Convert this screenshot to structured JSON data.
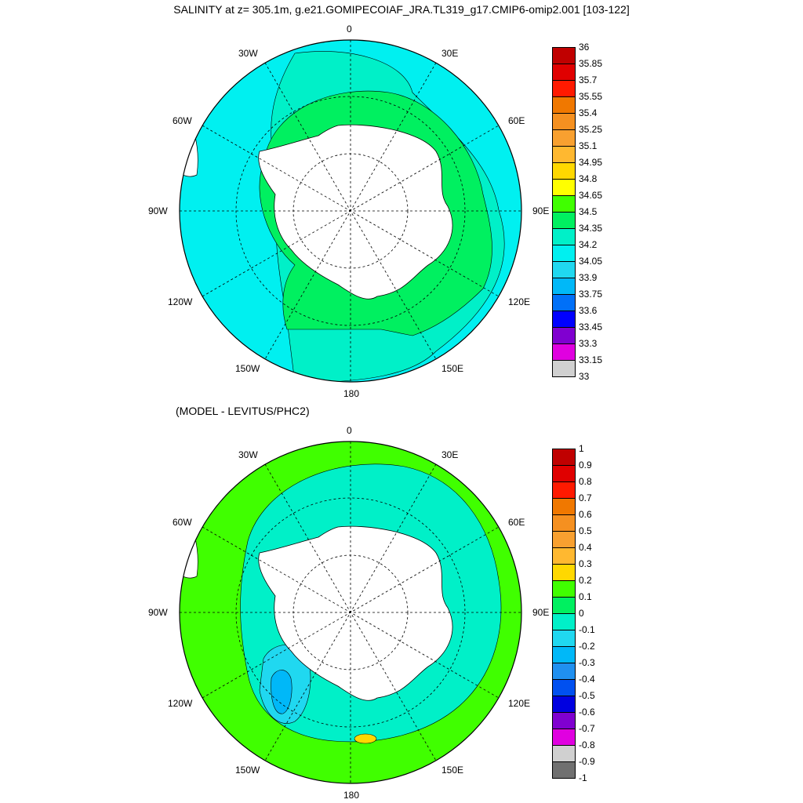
{
  "title": "SALINITY at z= 305.1m, g.e21.GOMIPECOIAF_JRA.TL319_g17.CMIP6-omip2.001 [103-122]",
  "subtitle": "(MODEL - LEVITUS/PHC2)",
  "lon_labels": [
    "0",
    "30E",
    "60E",
    "90E",
    "120E",
    "150E",
    "180",
    "150W",
    "120W",
    "90W",
    "60W",
    "30W"
  ],
  "top_colorbar": {
    "labels": [
      "36",
      "35.85",
      "35.7",
      "35.55",
      "35.4",
      "35.25",
      "35.1",
      "34.95",
      "34.8",
      "34.65",
      "34.5",
      "34.35",
      "34.2",
      "34.05",
      "33.9",
      "33.75",
      "33.6",
      "33.45",
      "33.3",
      "33.15",
      "33"
    ],
    "colors": [
      "#c00000",
      "#e00000",
      "#ff1a00",
      "#f07800",
      "#f59020",
      "#f8a030",
      "#ffb830",
      "#ffd800",
      "#ffff00",
      "#40ff00",
      "#00f060",
      "#00f0c8",
      "#00f0f0",
      "#20d8f0",
      "#00b8f8",
      "#0070f8",
      "#0000ff",
      "#8000d0",
      "#e000e0",
      "#d0d0d0"
    ]
  },
  "bottom_colorbar": {
    "labels": [
      "1",
      "0.9",
      "0.8",
      "0.7",
      "0.6",
      "0.5",
      "0.4",
      "0.3",
      "0.2",
      "0.1",
      "0",
      "-0.1",
      "-0.2",
      "-0.3",
      "-0.4",
      "-0.5",
      "-0.6",
      "-0.7",
      "-0.8",
      "-0.9",
      "-1"
    ],
    "colors": [
      "#c00000",
      "#e00000",
      "#ff1a00",
      "#f07800",
      "#f59020",
      "#f8a030",
      "#ffb830",
      "#ffd800",
      "#40ff00",
      "#00f060",
      "#00f0c8",
      "#20d8f0",
      "#00b8f8",
      "#2090f0",
      "#0050f0",
      "#0000e0",
      "#8000d0",
      "#e000e0",
      "#d0d0d0",
      "#707070"
    ]
  },
  "colors": {
    "land": "#ffffff",
    "top_outer": "#00f0f0",
    "top_inner": "#00f060",
    "top_mid": "#00f0c8",
    "bottom_base": "#40ff00",
    "bottom_cyan": "#00f0c8",
    "bottom_blue": "#20d8f0",
    "bottom_deep": "#00b8f8"
  }
}
